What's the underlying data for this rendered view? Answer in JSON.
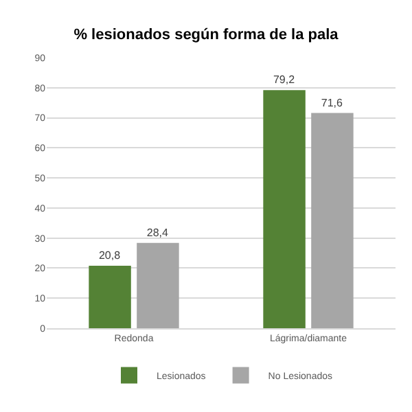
{
  "chart_data": {
    "type": "bar",
    "title": "% lesionados según forma de la pala",
    "categories": [
      "Redonda",
      "Lágrima/diamante"
    ],
    "series": [
      {
        "name": "Lesionados",
        "color": "#548235",
        "values": [
          20.8,
          79.2
        ],
        "value_labels": [
          "20,8",
          "79,2"
        ]
      },
      {
        "name": "No Lesionados",
        "color": "#a6a6a6",
        "values": [
          28.4,
          71.6
        ],
        "value_labels": [
          "28,4",
          "71,6"
        ]
      }
    ],
    "ylim": [
      0,
      90
    ],
    "yticks": [
      0,
      10,
      20,
      30,
      40,
      50,
      60,
      70,
      80,
      90
    ],
    "grid": "y",
    "legend": "bottom"
  }
}
